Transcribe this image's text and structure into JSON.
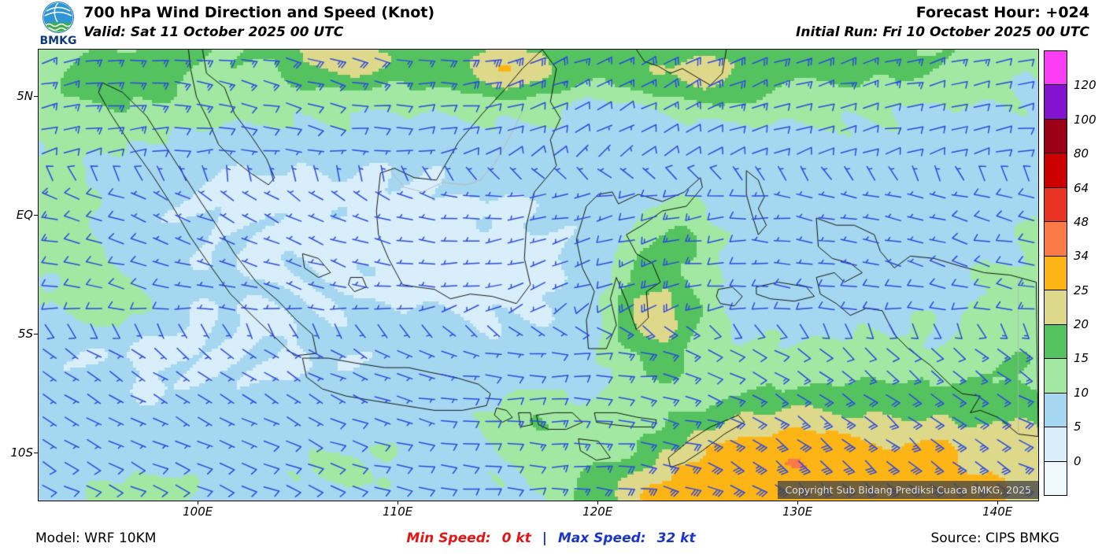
{
  "header": {
    "logo_text": "BMKG",
    "title": "700 hPa Wind Direction and Speed (Knot)",
    "valid_line": "Valid: Sat 11 October 2025 00 UTC",
    "forecast_hour": "Forecast Hour: +024",
    "initial_run": "Initial Run: Fri 10 October 2025 00 UTC"
  },
  "map": {
    "y_tick_labels": [
      "5N",
      "EQ",
      "5S",
      "10S"
    ],
    "x_tick_labels": [
      "100E",
      "110E",
      "120E",
      "130E",
      "140E"
    ],
    "copyright": "Copyright Sub Bidang Prediksi Cuaca BMKG, 2025"
  },
  "legend": {
    "boundary_labels": [
      "120",
      "100",
      "80",
      "64",
      "48",
      "34",
      "25",
      "20",
      "15",
      "10",
      "5",
      "0"
    ],
    "colors_top_to_bottom": [
      "#fa3cf5",
      "#8312d1",
      "#9c0016",
      "#cd0000",
      "#ea3423",
      "#fb7a48",
      "#fdb515",
      "#ded98a",
      "#54c35f",
      "#a2e8a2",
      "#a6d7f0",
      "#d8eefa",
      "#eef8fd"
    ]
  },
  "footer": {
    "model": "Model: WRF 10KM",
    "min_speed_label": "Min Speed:",
    "min_speed_value": "0 kt",
    "separator": "|",
    "max_speed_label": "Max Speed:",
    "max_speed_value": "32 kt",
    "source": "Source: CIPS BMKG",
    "min_color": "#e31414",
    "max_color": "#1a35cc"
  },
  "chart_data": {
    "type": "heatmap",
    "title": "700 hPa Wind Direction and Speed (Knot)",
    "units": "knot",
    "level": "700 hPa",
    "valid_time": "Sat 11 October 2025 00 UTC",
    "initial_run": "Fri 10 October 2025 00 UTC",
    "forecast_hour": "+024",
    "model": "WRF 10KM",
    "source": "CIPS BMKG",
    "min_speed_kt": 0,
    "max_speed_kt": 32,
    "lon_range_deg_east": [
      92,
      142
    ],
    "lat_range_deg_north": [
      -12,
      7
    ],
    "x_ticks": [
      "100E",
      "110E",
      "120E",
      "130E",
      "140E"
    ],
    "y_ticks": [
      "5N",
      "EQ",
      "5S",
      "10S"
    ],
    "speed_band_thresholds_kt": [
      0,
      5,
      10,
      15,
      20,
      25,
      34,
      48,
      64,
      80,
      100,
      120
    ],
    "band_colors_low_to_high": [
      "#eef8fd",
      "#d8eefa",
      "#a6d7f0",
      "#a2e8a2",
      "#54c35f",
      "#ded98a",
      "#fdb515",
      "#fb7a48",
      "#ea3423",
      "#cd0000",
      "#9c0016",
      "#8312d1",
      "#fa3cf5"
    ],
    "barb_color": "#2b49e0",
    "legend_position": "right",
    "grid": false
  }
}
